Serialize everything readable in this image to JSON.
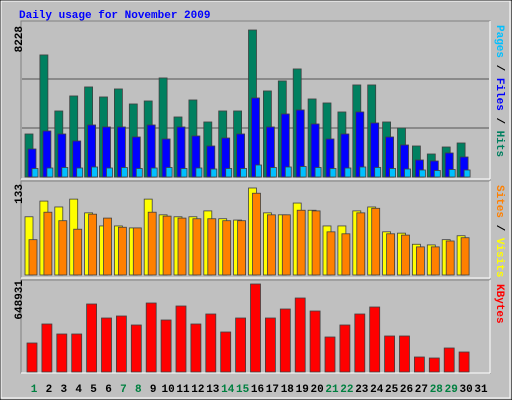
{
  "title": "Daily usage for November 2009",
  "legend_separator": " / ",
  "chart_data": [
    {
      "type": "bar",
      "ylim": [
        0,
        8228
      ],
      "yticks": [
        8228
      ],
      "series": [
        {
          "name": "Pages",
          "color": "#00c0ff",
          "values": [
            476,
            504,
            532,
            504,
            560,
            504,
            532,
            476,
            504,
            532,
            476,
            504,
            448,
            476,
            476,
            672,
            532,
            560,
            588,
            532,
            476,
            504,
            560,
            532,
            476,
            448,
            392,
            364,
            420,
            392,
            null
          ]
        },
        {
          "name": "Files",
          "color": "#0000ff",
          "values": [
            1568,
            2576,
            2408,
            2016,
            2912,
            2800,
            2800,
            2240,
            2912,
            2128,
            2800,
            2296,
            1736,
            2184,
            2408,
            4424,
            2800,
            3528,
            3752,
            2968,
            2128,
            2408,
            3640,
            3024,
            2240,
            1792,
            952,
            896,
            1344,
            1120,
            null
          ]
        },
        {
          "name": "Hits",
          "color": "#008060",
          "values": [
            2408,
            6832,
            3696,
            4536,
            5040,
            4480,
            4928,
            4088,
            4256,
            5544,
            3360,
            4312,
            3080,
            3696,
            3696,
            8228,
            4816,
            5376,
            6048,
            4368,
            4144,
            3640,
            5152,
            5152,
            3080,
            2744,
            1736,
            1288,
            1680,
            1904,
            null
          ]
        }
      ]
    },
    {
      "type": "bar",
      "ylim": [
        0,
        133
      ],
      "yticks": [
        133
      ],
      "series": [
        {
          "name": "Sites",
          "color": "#ff8000",
          "values": [
            54,
            96,
            83,
            70,
            93,
            87,
            73,
            72,
            96,
            90,
            87,
            86,
            86,
            83,
            83,
            125,
            92,
            92,
            99,
            98,
            66,
            63,
            95,
            102,
            63,
            61,
            43,
            43,
            52,
            57,
            null
          ]
        },
        {
          "name": "Visits",
          "color": "#ffff00",
          "values": [
            89,
            113,
            104,
            116,
            95,
            75,
            75,
            72,
            116,
            92,
            89,
            89,
            98,
            86,
            84,
            133,
            95,
            92,
            110,
            99,
            75,
            75,
            98,
            104,
            66,
            64,
            47,
            46,
            54,
            60,
            null
          ]
        }
      ]
    },
    {
      "type": "bar",
      "ylim": [
        0,
        648931
      ],
      "yticks": [
        648931
      ],
      "categories": [
        "1",
        "2",
        "3",
        "4",
        "5",
        "6",
        "7",
        "8",
        "9",
        "10",
        "11",
        "12",
        "13",
        "14",
        "15",
        "16",
        "17",
        "18",
        "19",
        "20",
        "21",
        "22",
        "23",
        "24",
        "25",
        "26",
        "27",
        "28",
        "29",
        "30",
        "31"
      ],
      "category_colors": [
        "#008040",
        "#000000",
        "#000000",
        "#000000",
        "#000000",
        "#000000",
        "#008040",
        "#008040",
        "#000000",
        "#000000",
        "#000000",
        "#000000",
        "#000000",
        "#008040",
        "#008040",
        "#000000",
        "#000000",
        "#000000",
        "#000000",
        "#000000",
        "#008040",
        "#008040",
        "#000000",
        "#000000",
        "#000000",
        "#000000",
        "#000000",
        "#008040",
        "#008040",
        "#000000",
        "#000000"
      ],
      "series": [
        {
          "name": "KBytes",
          "color": "#ff0000",
          "values": [
            213846,
            353952,
            280212,
            280212,
            501432,
            398196,
            412944,
            346578,
            508806,
            383448,
            486684,
            353952,
            427692,
            294960,
            398196,
            648931,
            398196,
            464562,
            545676,
            449814,
            258090,
            346578,
            427692,
            479310,
            265464,
            265464,
            110610,
            103236,
            176976,
            147480,
            null
          ]
        }
      ]
    }
  ]
}
